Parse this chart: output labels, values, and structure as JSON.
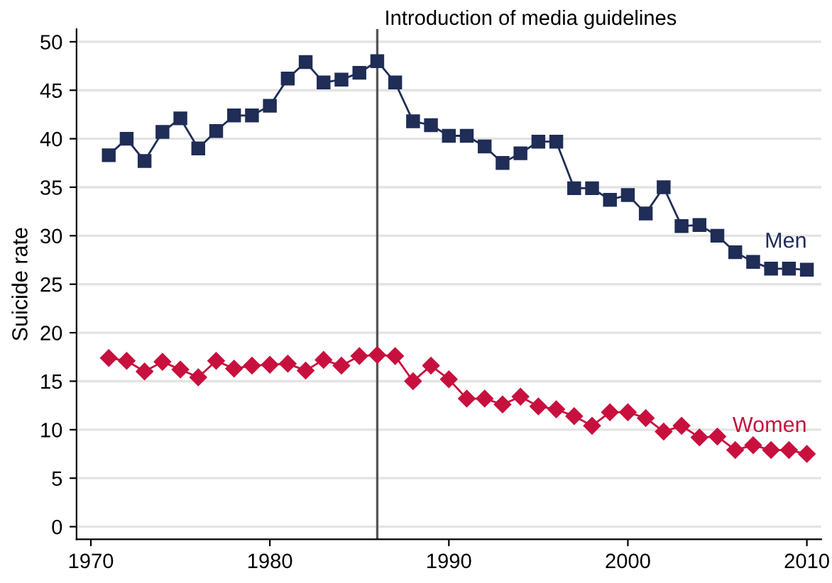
{
  "chart_data": {
    "type": "line",
    "ylabel": "Suicide rate",
    "x": [
      1971,
      1972,
      1973,
      1974,
      1975,
      1976,
      1977,
      1978,
      1979,
      1980,
      1981,
      1982,
      1983,
      1984,
      1985,
      1986,
      1987,
      1988,
      1989,
      1990,
      1991,
      1992,
      1993,
      1994,
      1995,
      1996,
      1997,
      1998,
      1999,
      2000,
      2001,
      2002,
      2003,
      2004,
      2005,
      2006,
      2007,
      2008,
      2009,
      2010
    ],
    "series": [
      {
        "name": "Men",
        "color": "#1f2d57",
        "marker": "square",
        "values": [
          38.3,
          40.0,
          37.7,
          40.7,
          42.1,
          39.0,
          40.8,
          42.4,
          42.4,
          43.4,
          46.2,
          47.9,
          45.8,
          46.1,
          46.8,
          48.0,
          45.8,
          41.8,
          41.4,
          40.3,
          40.3,
          39.2,
          37.5,
          38.5,
          39.7,
          39.7,
          34.9,
          34.9,
          33.7,
          34.2,
          32.3,
          35.0,
          31.0,
          31.1,
          30.0,
          28.3,
          27.3,
          26.6,
          26.6,
          26.5
        ]
      },
      {
        "name": "Women",
        "color": "#c8103e",
        "marker": "diamond",
        "values": [
          17.4,
          17.1,
          16.0,
          17.0,
          16.2,
          15.4,
          17.1,
          16.3,
          16.6,
          16.7,
          16.8,
          16.1,
          17.2,
          16.6,
          17.6,
          17.7,
          17.6,
          15.0,
          16.6,
          15.2,
          13.2,
          13.2,
          12.6,
          13.4,
          12.4,
          12.1,
          11.4,
          10.4,
          11.8,
          11.8,
          11.2,
          9.8,
          10.4,
          9.2,
          9.3,
          7.9,
          8.4,
          7.9,
          7.9,
          7.5
        ]
      }
    ],
    "xlim": [
      1969.2,
      2010.8
    ],
    "xticks": [
      1970,
      1980,
      1990,
      2000,
      2010
    ],
    "ylim": [
      -1.3,
      51.3
    ],
    "yticks": [
      0,
      5,
      10,
      15,
      20,
      25,
      30,
      35,
      40,
      45,
      50
    ],
    "grid": "y",
    "ref_lines": [
      {
        "axis": "x",
        "value": 1986,
        "label": "Introduction of media guidelines",
        "color": "#555555"
      }
    ]
  }
}
